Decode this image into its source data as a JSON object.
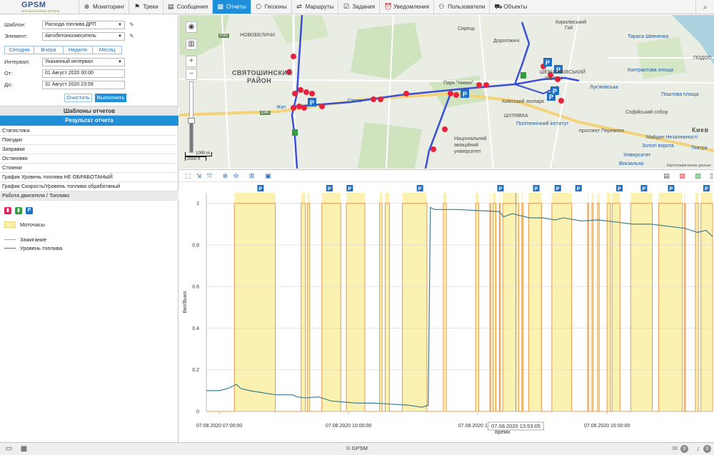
{
  "app": {
    "brand": "GPSM",
    "slogan": "GPS MONITORING SYSTEM"
  },
  "nav": [
    {
      "label": "Мониторинг",
      "icon": "globe-icon",
      "glyph": "⊕",
      "active": false
    },
    {
      "label": "Треки",
      "icon": "flag-icon",
      "glyph": "⚑",
      "active": false
    },
    {
      "label": "Сообщения",
      "icon": "messages-icon",
      "glyph": "▤",
      "active": false
    },
    {
      "label": "Отчеты",
      "icon": "reports-icon",
      "glyph": "▦",
      "active": true
    },
    {
      "label": "Геозоны",
      "icon": "geofence-icon",
      "glyph": "⬡",
      "active": false
    },
    {
      "label": "Маршруты",
      "icon": "route-icon",
      "glyph": "⇄",
      "active": false
    },
    {
      "label": "Задания",
      "icon": "tasks-icon",
      "glyph": "☑",
      "active": false
    },
    {
      "label": "Уведомления",
      "icon": "alarm-icon",
      "glyph": "⏰",
      "active": false
    },
    {
      "label": "Пользователи",
      "icon": "user-icon",
      "glyph": "⚇",
      "active": false
    },
    {
      "label": "Объекты",
      "icon": "car-icon",
      "glyph": "⛟",
      "active": false
    }
  ],
  "report_form": {
    "template_label": "Шаблон:",
    "template_value": "Расхода топлива ДРП",
    "element_label": "Элемент:",
    "element_value": "Автобетоносмеситель",
    "periods": [
      "Сегодня",
      "Вчера",
      "Неделя",
      "Месяц"
    ],
    "interval_label": "Интервал:",
    "interval_value": "Указанный интервал",
    "from_label": "От:",
    "from_value": "01 Август 2020 00:00",
    "to_label": "До:",
    "to_value": "31 Август 2020 23:59",
    "clear_label": "Очистить",
    "run_label": "Выполнить"
  },
  "sections": {
    "templates": "Шаблоны отчетов",
    "result": "Результат отчета"
  },
  "result_items": [
    "Статистика",
    "Поездки",
    "Заправки",
    "Остановки",
    "Стоянки",
    "График Уровень топлива НЕ ОБРАБОТАНЫЙ",
    "График Скорость/Уровень топлива обработаный",
    "Работа двигателя / Топливо"
  ],
  "legend": {
    "icons": [
      {
        "icon": "fuel-drain-icon",
        "glyph": "▮",
        "color": "#e0245e"
      },
      {
        "icon": "fuel-fill-icon",
        "glyph": "▮",
        "color": "#2e9e3e"
      },
      {
        "icon": "parking-icon",
        "glyph": "P",
        "color": "#1e6fc8"
      }
    ],
    "motohours": "Моточасы",
    "ignition": "Зажигание",
    "fuel_level": "Уровень топлива",
    "ignition_color": "#e89a4c",
    "fuel_color": "#3d7f8f"
  },
  "map": {
    "labels": {
      "novobelichi": "НОВОБЕЛИЧИ",
      "sviatoshinsky1": "СВЯТОШИНСКИЙ",
      "sviatoshinsky2": "РАЙОН",
      "syrets": "Сирець",
      "dorohozhychi": "Дорогожичі",
      "kyrylivskyi1": "Кирилівський",
      "kyrylivskyi2": "Гай",
      "shevchenko": "Тараса Шевченка",
      "podol": "ПОДОЛ",
      "kontraktova": "Контрактова площа",
      "poshtova": "Поштова площа",
      "sofia": "Софійський собор",
      "kiev": "Киев",
      "maidan": "Майдан Незалежності",
      "zoloti": "Золоті ворота",
      "university": "Університет",
      "vokzalna": "Вокзальна",
      "park": "Парк \"Нивки\"",
      "zoo": "Київський зоопарк",
      "shuliavka": "ШУЛЯВКА",
      "politech": "Політехнічний інститут",
      "aviation1": "Національний",
      "aviation2": "авіаційний",
      "aviation3": "університет",
      "peremohy": "проспект Перемоги",
      "lukianivska": "Лук'янівська",
      "shevchenkivskyi1": "ШЕВЧЕНКІВСЬКИЙ",
      "shevchenkivskyi2": "РАЙОН",
      "zhytomyr": "Жит",
      "sviato": "Свято",
      "teatra": "Театра",
      "e40": "E40",
      "p30": "P30"
    },
    "scale_m": "1000 m",
    "scale_ft": "2000 ft",
    "attribution": "Картографические данные"
  },
  "chart_toolbar": {
    "left_icons": [
      "select-zoom-icon",
      "zoom-x-icon",
      "zoom-fit-icon",
      "zoom-in-icon",
      "zoom-out-icon",
      "zoom-reset-icon",
      "settings-icon"
    ],
    "right_icons": [
      "table-icon",
      "pdf-icon",
      "excel-icon",
      "export-icon"
    ]
  },
  "chart_data": {
    "type": "line",
    "xlabel": "Время",
    "ylabel": "Вкл/Выкл",
    "ylim": [
      0,
      1.05
    ],
    "y_ticks": [
      "0",
      "0.2",
      "0.4",
      "0.6",
      "0.8",
      "1"
    ],
    "x_ticks": [
      {
        "label": "07.08.2020 07:00:00",
        "hour": 7
      },
      {
        "label": "07.08.2020 10:00:00",
        "hour": 10
      },
      {
        "label": "07.08.2020 13:00",
        "hour": 13
      },
      {
        "label": "07.08.2020 16:00:00",
        "hour": 16
      }
    ],
    "xlim_hours": [
      6.7,
      18.45
    ],
    "tooltip": {
      "label": "07.08.2020 13:53:05",
      "hour": 13.885
    },
    "motohours_intervals_hours": [
      [
        7.35,
        8.3
      ],
      [
        8.9,
        9.0
      ],
      [
        9.05,
        9.1
      ],
      [
        9.38,
        9.82
      ],
      [
        9.95,
        10.38
      ],
      [
        10.72,
        10.78
      ],
      [
        10.85,
        10.95
      ],
      [
        11.25,
        11.82
      ],
      [
        12.2,
        12.27
      ],
      [
        12.95,
        13.02
      ],
      [
        13.28,
        13.3
      ],
      [
        13.35,
        13.42
      ],
      [
        13.5,
        13.52
      ],
      [
        13.58,
        13.95
      ],
      [
        14.02,
        14.05
      ],
      [
        14.18,
        14.48
      ],
      [
        14.72,
        15.18
      ],
      [
        15.55,
        15.57
      ],
      [
        15.65,
        15.68
      ],
      [
        15.78,
        15.82
      ],
      [
        16.0,
        16.08
      ],
      [
        16.12,
        16.3
      ],
      [
        16.55,
        17.05
      ],
      [
        17.2,
        17.75
      ],
      [
        17.8,
        17.82
      ],
      [
        18.05,
        18.12
      ],
      [
        18.18,
        18.45
      ]
    ],
    "parking_marker_hours": [
      7.95,
      9.55,
      10.02,
      11.65,
      13.52,
      14.35,
      14.85,
      15.33,
      16.28,
      16.85,
      17.48,
      18.3
    ],
    "series": [
      {
        "name": "Уровень топлива",
        "points": [
          [
            6.7,
            0.1
          ],
          [
            7.0,
            0.1
          ],
          [
            7.2,
            0.11
          ],
          [
            7.4,
            0.13
          ],
          [
            7.5,
            0.11
          ],
          [
            7.7,
            0.1
          ],
          [
            8.0,
            0.09
          ],
          [
            8.3,
            0.08
          ],
          [
            8.7,
            0.08
          ],
          [
            8.8,
            0.07
          ],
          [
            9.0,
            0.065
          ],
          [
            9.3,
            0.07
          ],
          [
            9.6,
            0.05
          ],
          [
            9.9,
            0.045
          ],
          [
            10.2,
            0.04
          ],
          [
            10.6,
            0.04
          ],
          [
            11.0,
            0.035
          ],
          [
            11.4,
            0.03
          ],
          [
            11.7,
            0.02
          ],
          [
            11.85,
            0.03
          ],
          [
            11.9,
            0.98
          ],
          [
            12.0,
            0.97
          ],
          [
            12.5,
            0.97
          ],
          [
            13.0,
            0.965
          ],
          [
            13.5,
            0.96
          ],
          [
            13.6,
            0.935
          ],
          [
            13.8,
            0.95
          ],
          [
            14.0,
            0.94
          ],
          [
            14.2,
            0.93
          ],
          [
            14.5,
            0.93
          ],
          [
            14.8,
            0.92
          ],
          [
            15.0,
            0.93
          ],
          [
            15.4,
            0.915
          ],
          [
            15.8,
            0.92
          ],
          [
            16.2,
            0.91
          ],
          [
            16.6,
            0.9
          ],
          [
            17.0,
            0.9
          ],
          [
            17.4,
            0.89
          ],
          [
            17.8,
            0.88
          ],
          [
            18.1,
            0.86
          ],
          [
            18.3,
            0.87
          ],
          [
            18.45,
            0.84
          ]
        ]
      },
      {
        "name": "Зажигание",
        "on_intervals_hours": [
          [
            7.35,
            8.3
          ],
          [
            8.9,
            9.0
          ],
          [
            9.05,
            9.1
          ],
          [
            9.38,
            9.82
          ],
          [
            9.95,
            10.38
          ],
          [
            10.72,
            10.78
          ],
          [
            10.85,
            10.95
          ],
          [
            11.25,
            11.82
          ],
          [
            12.2,
            12.27
          ],
          [
            12.95,
            13.02
          ],
          [
            13.28,
            13.3
          ],
          [
            13.35,
            13.42
          ],
          [
            13.5,
            13.52
          ],
          [
            13.58,
            13.95
          ],
          [
            14.02,
            14.05
          ],
          [
            14.18,
            14.48
          ],
          [
            14.72,
            15.18
          ],
          [
            15.55,
            15.57
          ],
          [
            15.65,
            15.68
          ],
          [
            15.78,
            15.82
          ],
          [
            16.0,
            16.08
          ],
          [
            16.12,
            16.3
          ],
          [
            16.55,
            17.05
          ],
          [
            17.2,
            17.75
          ],
          [
            17.8,
            17.82
          ],
          [
            18.05,
            18.12
          ],
          [
            18.18,
            18.45
          ]
        ]
      }
    ]
  },
  "footer": {
    "copyright": "© GPSM",
    "badge1": "0",
    "badge2": "0"
  }
}
